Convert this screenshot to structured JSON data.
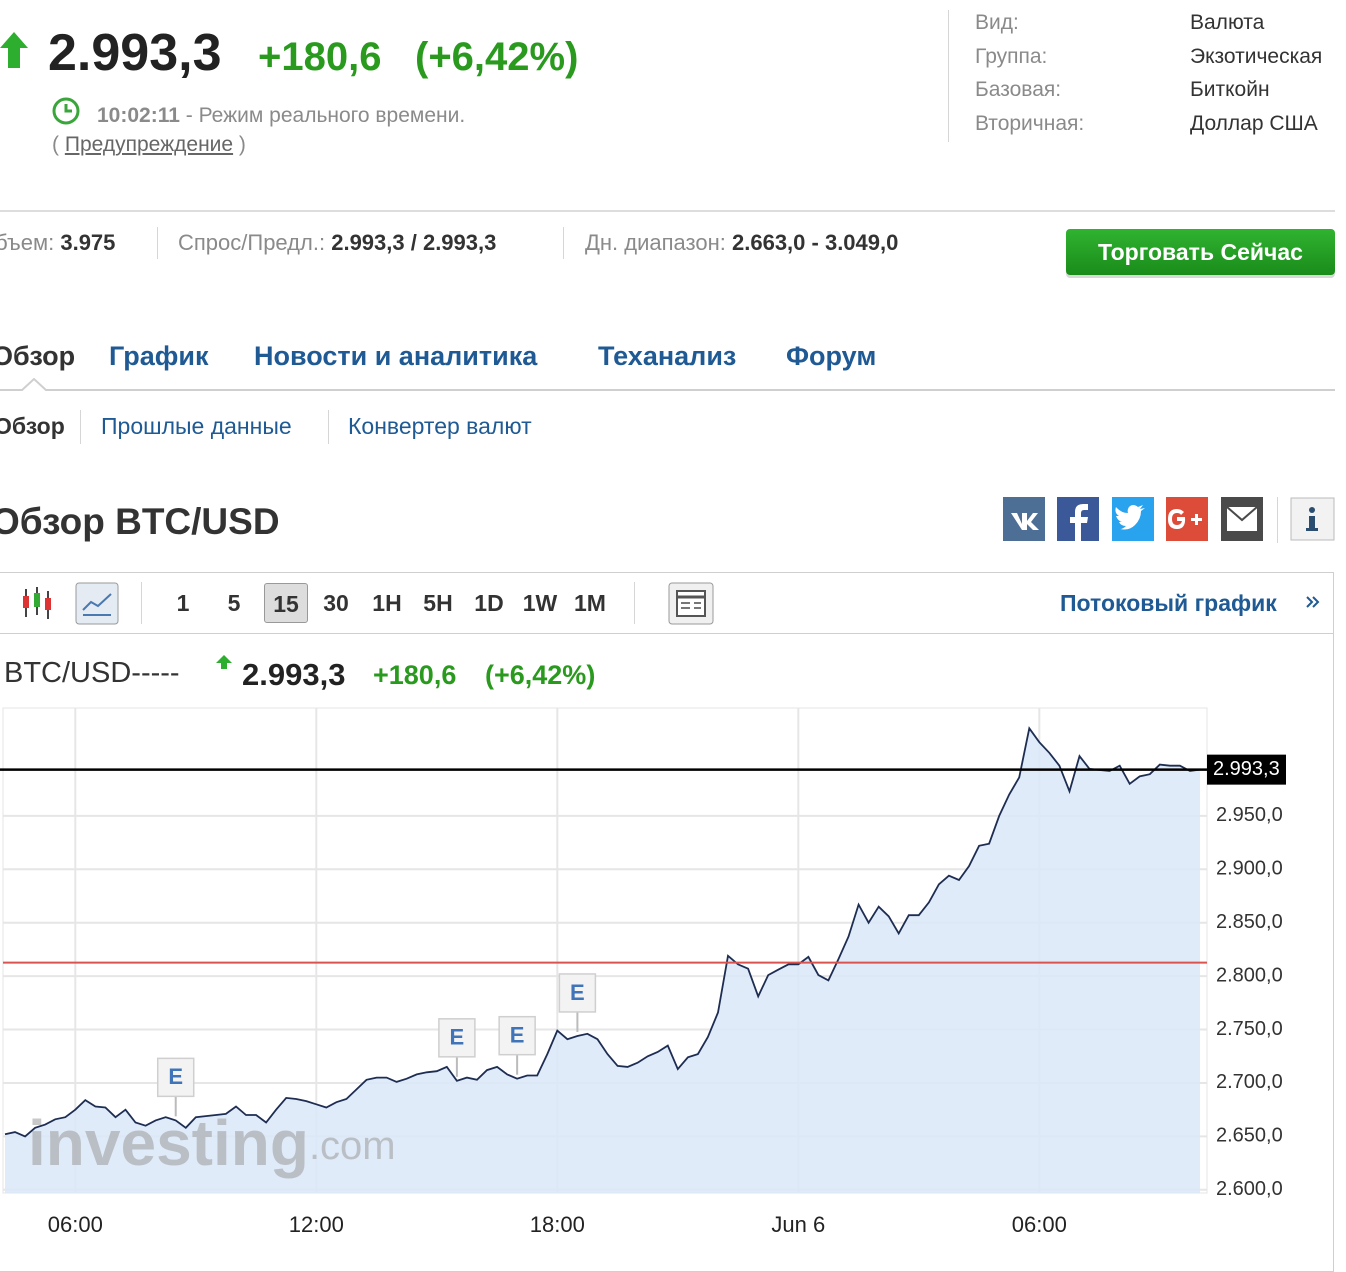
{
  "quote": {
    "price": "2.993,3",
    "change": "+180,6",
    "change_pct": "(+6,42%)",
    "time": "10:02:11",
    "time_note": "- Режим реального времени.",
    "warning_open": "(",
    "warning": "Предупреждение",
    "warning_close": ")"
  },
  "info": [
    {
      "label": "Вид:",
      "value": "Валюта"
    },
    {
      "label": "Группа:",
      "value": "Экзотическая"
    },
    {
      "label": "Базовая:",
      "value": "Биткойн"
    },
    {
      "label": "Вторичная:",
      "value": "Доллар США"
    }
  ],
  "stats": [
    {
      "label": "Объем:",
      "value": "3.975"
    },
    {
      "label": "Спрос/Предл.:",
      "value": "2.993,3 / 2.993,3"
    },
    {
      "label": "Дн. диапазон:",
      "value": "2.663,0 - 3.049,0"
    }
  ],
  "trade_button": "Торговать Сейчас",
  "tabs": [
    "Обзор",
    "График",
    "Новости и аналитика",
    "Теханализ",
    "Форум"
  ],
  "subtabs": [
    "Обзор",
    "Прошлые данные",
    "Конвертер валют"
  ],
  "section_title": "Обзор BTC/USD",
  "toolbar": {
    "intervals": [
      "1",
      "5",
      "15",
      "30",
      "1H",
      "5H",
      "1D",
      "1W",
      "1M"
    ],
    "active_interval": "15",
    "stream_link": "Потоковый график"
  },
  "chart_header": {
    "symbol": "BTC/USD-----",
    "price": "2.993,3",
    "change": "+180,6",
    "change_pct": "(+6,42%)"
  },
  "watermark": {
    "brand": "investing",
    "domain": ".com"
  },
  "chart_data": {
    "type": "area",
    "color": "#1e2d52",
    "fill": "#dbe8f8",
    "values": [
      2652,
      2654,
      2650,
      2658,
      2661,
      2666,
      2668,
      2675,
      2684,
      2678,
      2677,
      2668,
      2675,
      2663,
      2660,
      2665,
      2668,
      2665,
      2658,
      2668,
      2669,
      2670,
      2671,
      2678,
      2670,
      2670,
      2663,
      2675,
      2686,
      2685,
      2683,
      2680,
      2677,
      2682,
      2685,
      2694,
      2703,
      2705,
      2705,
      2701,
      2704,
      2708,
      2710,
      2711,
      2715,
      2702,
      2705,
      2703,
      2712,
      2715,
      2708,
      2704,
      2707,
      2707,
      2727,
      2749,
      2741,
      2744,
      2746,
      2741,
      2727,
      2716,
      2715,
      2719,
      2725,
      2729,
      2735,
      2713,
      2724,
      2727,
      2743,
      2766,
      2819,
      2811,
      2807,
      2781,
      2801,
      2806,
      2811,
      2811,
      2818,
      2801,
      2796,
      2816,
      2837,
      2867,
      2850,
      2865,
      2856,
      2840,
      2857,
      2857,
      2869,
      2886,
      2894,
      2890,
      2903,
      2922,
      2924,
      2950,
      2970,
      2986,
      3032,
      3019,
      3009,
      2997,
      2973,
      3006,
      2994,
      2993,
      2992,
      2997,
      2980,
      2987,
      2989,
      2998,
      2997,
      2997,
      2992,
      2993.3
    ],
    "xlim": [
      0,
      119
    ],
    "xticks": [
      {
        "value": 7,
        "label": "06:00"
      },
      {
        "value": 31,
        "label": "12:00"
      },
      {
        "value": 55,
        "label": "18:00"
      },
      {
        "value": 79,
        "label": "Jun 6"
      },
      {
        "value": 103,
        "label": "06:00"
      }
    ],
    "ylim": [
      2597,
      3051
    ],
    "yticks": [
      {
        "value": 2600,
        "label": "2.600,0"
      },
      {
        "value": 2650,
        "label": "2.650,0"
      },
      {
        "value": 2700,
        "label": "2.700,0"
      },
      {
        "value": 2750,
        "label": "2.750,0"
      },
      {
        "value": 2800,
        "label": "2.800,0"
      },
      {
        "value": 2850,
        "label": "2.850,0"
      },
      {
        "value": 2900,
        "label": "2.900,0"
      },
      {
        "value": 2950,
        "label": "2.950,0"
      }
    ],
    "grid": true,
    "last_price": {
      "value": 2993.3,
      "label": "2.993,3"
    },
    "prev_close": 2812.7,
    "prev_close_color": "#d9534f",
    "events": [
      {
        "x": 17,
        "label": "E"
      },
      {
        "x": 45,
        "label": "E"
      },
      {
        "x": 51,
        "label": "E"
      },
      {
        "x": 57,
        "label": "E"
      }
    ]
  }
}
